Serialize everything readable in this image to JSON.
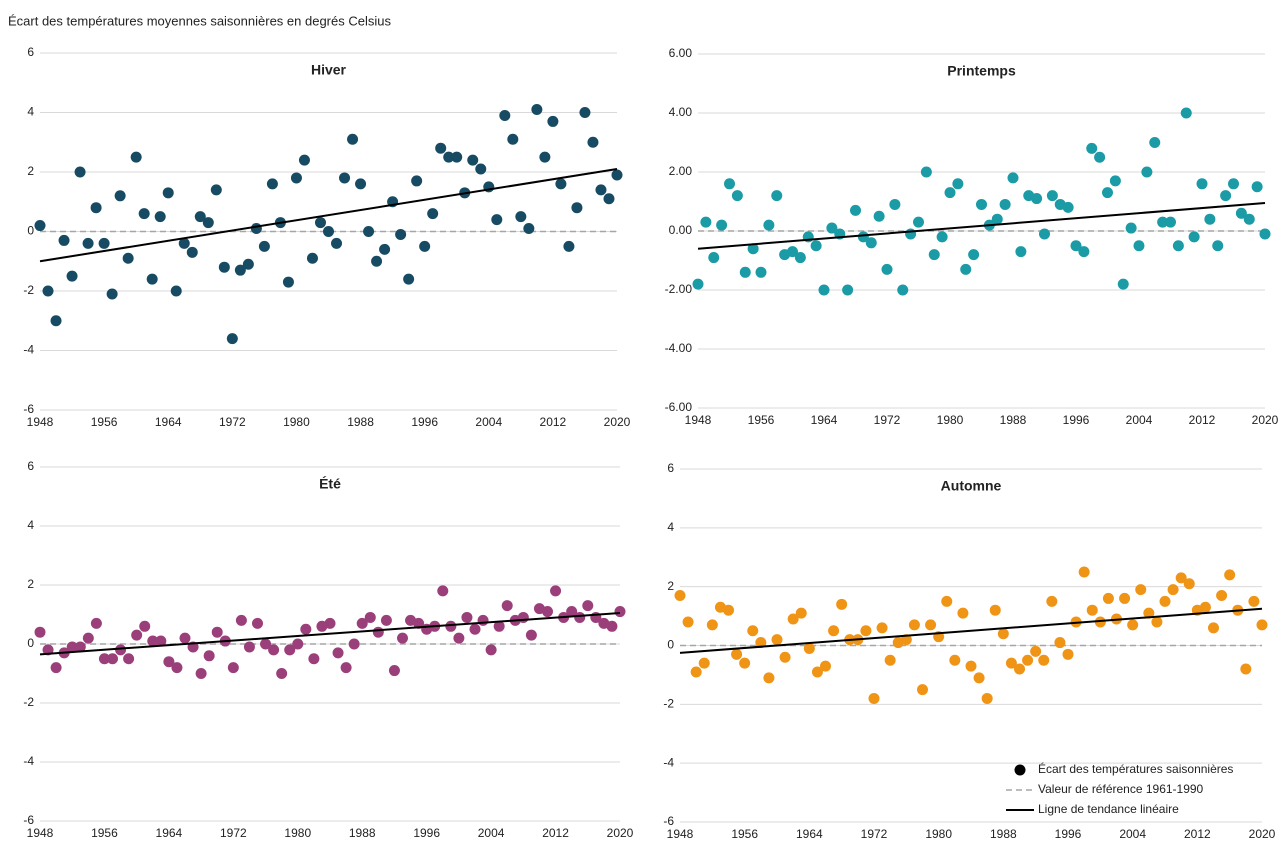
{
  "title": "Écart des températures moyennes saisonnières en degrés Celsius",
  "chart_data": [
    {
      "type": "scatter",
      "title": "Hiver",
      "color": "#174a63",
      "reference": 0,
      "x": [
        1948,
        1949,
        1950,
        1951,
        1952,
        1953,
        1954,
        1955,
        1956,
        1957,
        1958,
        1959,
        1960,
        1961,
        1962,
        1963,
        1964,
        1965,
        1966,
        1967,
        1968,
        1969,
        1970,
        1971,
        1972,
        1973,
        1974,
        1975,
        1976,
        1977,
        1978,
        1979,
        1980,
        1981,
        1982,
        1983,
        1984,
        1985,
        1986,
        1987,
        1988,
        1989,
        1990,
        1991,
        1992,
        1993,
        1994,
        1995,
        1996,
        1997,
        1998,
        1999,
        2000,
        2001,
        2002,
        2003,
        2004,
        2005,
        2006,
        2007,
        2008,
        2009,
        2010,
        2011,
        2012,
        2013,
        2014,
        2015,
        2016,
        2017,
        2018,
        2019,
        2020
      ],
      "values": [
        0.2,
        -2.0,
        -3.0,
        -0.3,
        -1.5,
        2.0,
        -0.4,
        0.8,
        -0.4,
        -2.1,
        1.2,
        -0.9,
        2.5,
        0.6,
        -1.6,
        0.5,
        1.3,
        -2.0,
        -0.4,
        -0.7,
        0.5,
        0.3,
        1.4,
        -1.2,
        -3.6,
        -1.3,
        -1.1,
        0.1,
        -0.5,
        1.6,
        0.3,
        -1.7,
        1.8,
        2.4,
        -0.9,
        0.3,
        0.0,
        -0.4,
        1.8,
        3.1,
        1.6,
        0.0,
        -1.0,
        -0.6,
        1.0,
        -0.1,
        -1.6,
        1.7,
        -0.5,
        0.6,
        2.8,
        2.5,
        2.5,
        1.3,
        2.4,
        2.1,
        1.5,
        0.4,
        3.9,
        3.1,
        0.5,
        0.1,
        4.1,
        2.5,
        3.7,
        1.6,
        -0.5,
        0.8,
        4.0,
        3.0,
        1.4,
        1.1,
        1.9
      ],
      "trend": {
        "x": [
          1948,
          2020
        ],
        "values": [
          -1.0,
          2.1
        ]
      },
      "xlim": [
        1948,
        2020
      ],
      "xticks": [
        1948,
        1956,
        1964,
        1972,
        1980,
        1988,
        1996,
        2004,
        2012,
        2020
      ],
      "ylim": [
        -6,
        6
      ],
      "yticks": [
        -6,
        -4,
        -2,
        0,
        2,
        4,
        6
      ],
      "grid": true
    },
    {
      "type": "scatter",
      "title": "Printemps",
      "color": "#1a9ba5",
      "reference": 0,
      "x": [
        1948,
        1949,
        1950,
        1951,
        1952,
        1953,
        1954,
        1955,
        1956,
        1957,
        1958,
        1959,
        1960,
        1961,
        1962,
        1963,
        1964,
        1965,
        1966,
        1967,
        1968,
        1969,
        1970,
        1971,
        1972,
        1973,
        1974,
        1975,
        1976,
        1977,
        1978,
        1979,
        1980,
        1981,
        1982,
        1983,
        1984,
        1985,
        1986,
        1987,
        1988,
        1989,
        1990,
        1991,
        1992,
        1993,
        1994,
        1995,
        1996,
        1997,
        1998,
        1999,
        2000,
        2001,
        2002,
        2003,
        2004,
        2005,
        2006,
        2007,
        2008,
        2009,
        2010,
        2011,
        2012,
        2013,
        2014,
        2015,
        2016,
        2017,
        2018,
        2019,
        2020
      ],
      "values": [
        -1.8,
        0.3,
        -0.9,
        0.2,
        1.6,
        1.2,
        -1.4,
        -0.6,
        -1.4,
        0.2,
        1.2,
        -0.8,
        -0.7,
        -0.9,
        -0.2,
        -0.5,
        -2.0,
        0.1,
        -0.1,
        -2.0,
        0.7,
        -0.2,
        -0.4,
        0.5,
        -1.3,
        0.9,
        -2.0,
        -0.1,
        0.3,
        2.0,
        -0.8,
        -0.2,
        1.3,
        1.6,
        -1.3,
        -0.8,
        0.9,
        0.2,
        0.4,
        0.9,
        1.8,
        -0.7,
        1.2,
        1.1,
        -0.1,
        1.2,
        0.9,
        0.8,
        -0.5,
        -0.7,
        2.8,
        2.5,
        1.3,
        1.7,
        -1.8,
        0.1,
        -0.5,
        2.0,
        3.0,
        0.3,
        0.3,
        -0.5,
        4.0,
        -0.2,
        1.6,
        0.4,
        -0.5,
        1.2,
        1.6,
        0.6,
        0.4,
        1.5,
        -0.1
      ],
      "trend": {
        "x": [
          1948,
          2020
        ],
        "values": [
          -0.6,
          0.95
        ]
      },
      "xlim": [
        1948,
        2020
      ],
      "xticks": [
        1948,
        1956,
        1964,
        1972,
        1980,
        1988,
        1996,
        2004,
        2012,
        2020
      ],
      "ylim": [
        -6,
        6
      ],
      "yticks": [
        {
          "value": -6,
          "label": "-6.00"
        },
        {
          "value": -4,
          "label": "-4.00"
        },
        {
          "value": -2,
          "label": "-2.00"
        },
        {
          "value": 0,
          "label": "0.00"
        },
        {
          "value": 2,
          "label": "2.00"
        },
        {
          "value": 4,
          "label": "4.00"
        },
        {
          "value": 6,
          "label": "6.00"
        }
      ],
      "grid": true
    },
    {
      "type": "scatter",
      "title": "Été",
      "color": "#9b3f7b",
      "reference": 0,
      "x": [
        1948,
        1949,
        1950,
        1951,
        1952,
        1953,
        1954,
        1955,
        1956,
        1957,
        1958,
        1959,
        1960,
        1961,
        1962,
        1963,
        1964,
        1965,
        1966,
        1967,
        1968,
        1969,
        1970,
        1971,
        1972,
        1973,
        1974,
        1975,
        1976,
        1977,
        1978,
        1979,
        1980,
        1981,
        1982,
        1983,
        1984,
        1985,
        1986,
        1987,
        1988,
        1989,
        1990,
        1991,
        1992,
        1993,
        1994,
        1995,
        1996,
        1997,
        1998,
        1999,
        2000,
        2001,
        2002,
        2003,
        2004,
        2005,
        2006,
        2007,
        2008,
        2009,
        2010,
        2011,
        2012,
        2013,
        2014,
        2015,
        2016,
        2017,
        2018,
        2019,
        2020
      ],
      "values": [
        0.4,
        -0.2,
        -0.8,
        -0.3,
        -0.1,
        -0.1,
        0.2,
        0.7,
        -0.5,
        -0.5,
        -0.2,
        -0.5,
        0.3,
        0.6,
        0.1,
        0.1,
        -0.6,
        -0.8,
        0.2,
        -0.1,
        -1.0,
        -0.4,
        0.4,
        0.1,
        -0.8,
        0.8,
        -0.1,
        0.7,
        0.0,
        -0.2,
        -1.0,
        -0.2,
        0.0,
        0.5,
        -0.5,
        0.6,
        0.7,
        -0.3,
        -0.8,
        0.0,
        0.7,
        0.9,
        0.4,
        0.8,
        -0.9,
        0.2,
        0.8,
        0.7,
        0.5,
        0.6,
        1.8,
        0.6,
        0.2,
        0.9,
        0.5,
        0.8,
        -0.2,
        0.6,
        1.3,
        0.8,
        0.9,
        0.3,
        1.2,
        1.1,
        1.8,
        0.9,
        1.1,
        0.9,
        1.3,
        0.9,
        0.7,
        0.6,
        1.1
      ],
      "trend": {
        "x": [
          1948,
          2020
        ],
        "values": [
          -0.35,
          1.05
        ]
      },
      "xlim": [
        1948,
        2020
      ],
      "xticks": [
        1948,
        1956,
        1964,
        1972,
        1980,
        1988,
        1996,
        2004,
        2012,
        2020
      ],
      "ylim": [
        -6,
        6
      ],
      "yticks": [
        -6,
        -4,
        -2,
        0,
        2,
        4,
        6
      ],
      "grid": true
    },
    {
      "type": "scatter",
      "title": "Automne",
      "color": "#ef9415",
      "reference": 0,
      "x": [
        1948,
        1949,
        1950,
        1951,
        1952,
        1953,
        1954,
        1955,
        1956,
        1957,
        1958,
        1959,
        1960,
        1961,
        1962,
        1963,
        1964,
        1965,
        1966,
        1967,
        1968,
        1969,
        1970,
        1971,
        1972,
        1973,
        1974,
        1975,
        1976,
        1977,
        1978,
        1979,
        1980,
        1981,
        1982,
        1983,
        1984,
        1985,
        1986,
        1987,
        1988,
        1989,
        1990,
        1991,
        1992,
        1993,
        1994,
        1995,
        1996,
        1997,
        1998,
        1999,
        2000,
        2001,
        2002,
        2003,
        2004,
        2005,
        2006,
        2007,
        2008,
        2009,
        2010,
        2011,
        2012,
        2013,
        2014,
        2015,
        2016,
        2017,
        2018,
        2019,
        2020
      ],
      "values": [
        1.7,
        0.8,
        -0.9,
        -0.6,
        0.7,
        1.3,
        1.2,
        -0.3,
        -0.6,
        0.5,
        0.1,
        -1.1,
        0.2,
        -0.4,
        0.9,
        1.1,
        -0.1,
        -0.9,
        -0.7,
        0.5,
        1.4,
        0.2,
        0.2,
        0.5,
        -1.8,
        0.6,
        -0.5,
        0.1,
        0.2,
        0.7,
        -1.5,
        0.7,
        0.3,
        1.5,
        -0.5,
        1.1,
        -0.7,
        -1.1,
        -1.8,
        1.2,
        0.4,
        -0.6,
        -0.8,
        -0.5,
        -0.2,
        -0.5,
        1.5,
        0.1,
        -0.3,
        0.8,
        2.5,
        1.2,
        0.8,
        1.6,
        0.9,
        1.6,
        0.7,
        1.9,
        1.1,
        0.8,
        1.5,
        1.9,
        2.3,
        2.1,
        1.2,
        1.3,
        0.6,
        1.7,
        2.4,
        1.2,
        -0.8,
        1.5,
        0.7
      ],
      "trend": {
        "x": [
          1948,
          2020
        ],
        "values": [
          -0.25,
          1.25
        ]
      },
      "xlim": [
        1948,
        2020
      ],
      "xticks": [
        1948,
        1956,
        1964,
        1972,
        1980,
        1988,
        1996,
        2004,
        2012,
        2020
      ],
      "ylim": [
        -6,
        6
      ],
      "yticks": [
        -6,
        -4,
        -2,
        0,
        2,
        4,
        6
      ],
      "grid": true,
      "legend_corner": "lower right",
      "legend": {
        "points": "Écart des températures saisonnières",
        "reference": "Valeur de référence 1961-1990",
        "trend": "Ligne de tendance linéaire"
      }
    }
  ]
}
